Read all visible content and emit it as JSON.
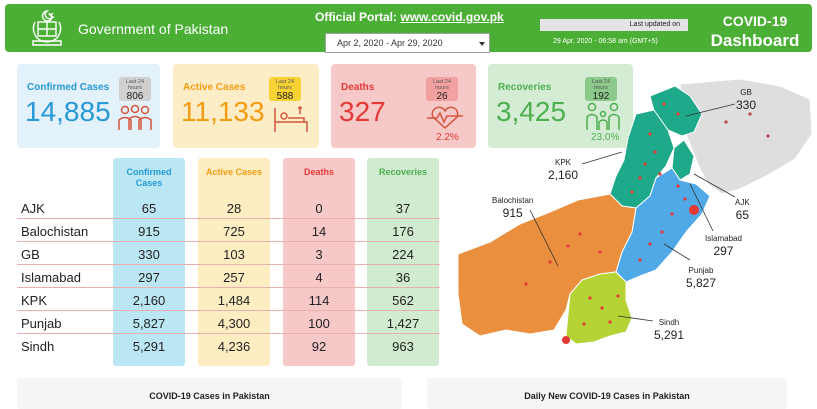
{
  "header": {
    "gov_title": "Government of Pakistan",
    "portal_label": "Official Portal:",
    "portal_link": "www.covid.gov.pk",
    "date_range": "Apr 2, 2020 - Apr 29, 2020",
    "last_updated_label": "Last updated on",
    "last_updated_value": "29 Apr, 2020 - 06:58 am (GMT+5)",
    "dashboard_title_1": "COVID-19",
    "dashboard_title_2": "Dashboard"
  },
  "cards": {
    "confirmed": {
      "label": "Confirmed Cases",
      "value": "14,885",
      "last24_label": "Last 24 hours",
      "last24": "806",
      "icon": "people-group-icon"
    },
    "active": {
      "label": "Active Cases",
      "value": "11,133",
      "last24_label": "Last 24 hours",
      "last24": "588",
      "icon": "hospital-bed-icon"
    },
    "deaths": {
      "label": "Deaths",
      "value": "327",
      "last24_label": "Last 24 hours",
      "last24": "26",
      "pct": "2.2%",
      "icon": "heartbeat-icon"
    },
    "recoveries": {
      "label": "Recoveries",
      "value": "3,425",
      "last24_label": "Last 24 hours",
      "last24": "192",
      "pct": "23.0%",
      "icon": "family-icon"
    }
  },
  "table": {
    "headers": {
      "confirmed": "Confirmed Cases",
      "active": "Active Cases",
      "deaths": "Deaths",
      "recoveries": "Recoveries"
    },
    "rows": [
      {
        "region": "AJK",
        "confirmed": "65",
        "active": "28",
        "deaths": "0",
        "recoveries": "37"
      },
      {
        "region": "Balochistan",
        "confirmed": "915",
        "active": "725",
        "deaths": "14",
        "recoveries": "176"
      },
      {
        "region": "GB",
        "confirmed": "330",
        "active": "103",
        "deaths": "3",
        "recoveries": "224"
      },
      {
        "region": "Islamabad",
        "confirmed": "297",
        "active": "257",
        "deaths": "4",
        "recoveries": "36"
      },
      {
        "region": "KPK",
        "confirmed": "2,160",
        "active": "1,484",
        "deaths": "114",
        "recoveries": "562"
      },
      {
        "region": "Punjab",
        "confirmed": "5,827",
        "active": "4,300",
        "deaths": "100",
        "recoveries": "1,427"
      },
      {
        "region": "Sindh",
        "confirmed": "5,291",
        "active": "4,236",
        "deaths": "92",
        "recoveries": "963"
      }
    ]
  },
  "map_labels": {
    "gb": {
      "name": "GB",
      "value": "330"
    },
    "kpk": {
      "name": "KPK",
      "value": "2,160"
    },
    "ajk": {
      "name": "AJK",
      "value": "65"
    },
    "islamabad": {
      "name": "Islamabad",
      "value": "297"
    },
    "balochistan": {
      "name": "Balochistan",
      "value": "915"
    },
    "punjab": {
      "name": "Punjab",
      "value": "5,827"
    },
    "sindh": {
      "name": "Sindh",
      "value": "5,291"
    }
  },
  "map_colors": {
    "gb": "#1ea98a",
    "kpk": "#1ea98a",
    "punjab": "#4ea9e6",
    "balochistan": "#e98f3e",
    "sindh": "#b5d334",
    "neighbor": "#dedede",
    "dot": "#e53935"
  },
  "panels": {
    "left": "COVID-19 Cases in Pakistan",
    "right": "Daily New COVID-19 Cases in Pakistan"
  },
  "colors": {
    "header_green": "#4caf35",
    "confirmed": "#2699d6",
    "active": "#f39c12",
    "deaths": "#e53935",
    "recoveries": "#4caf50"
  }
}
